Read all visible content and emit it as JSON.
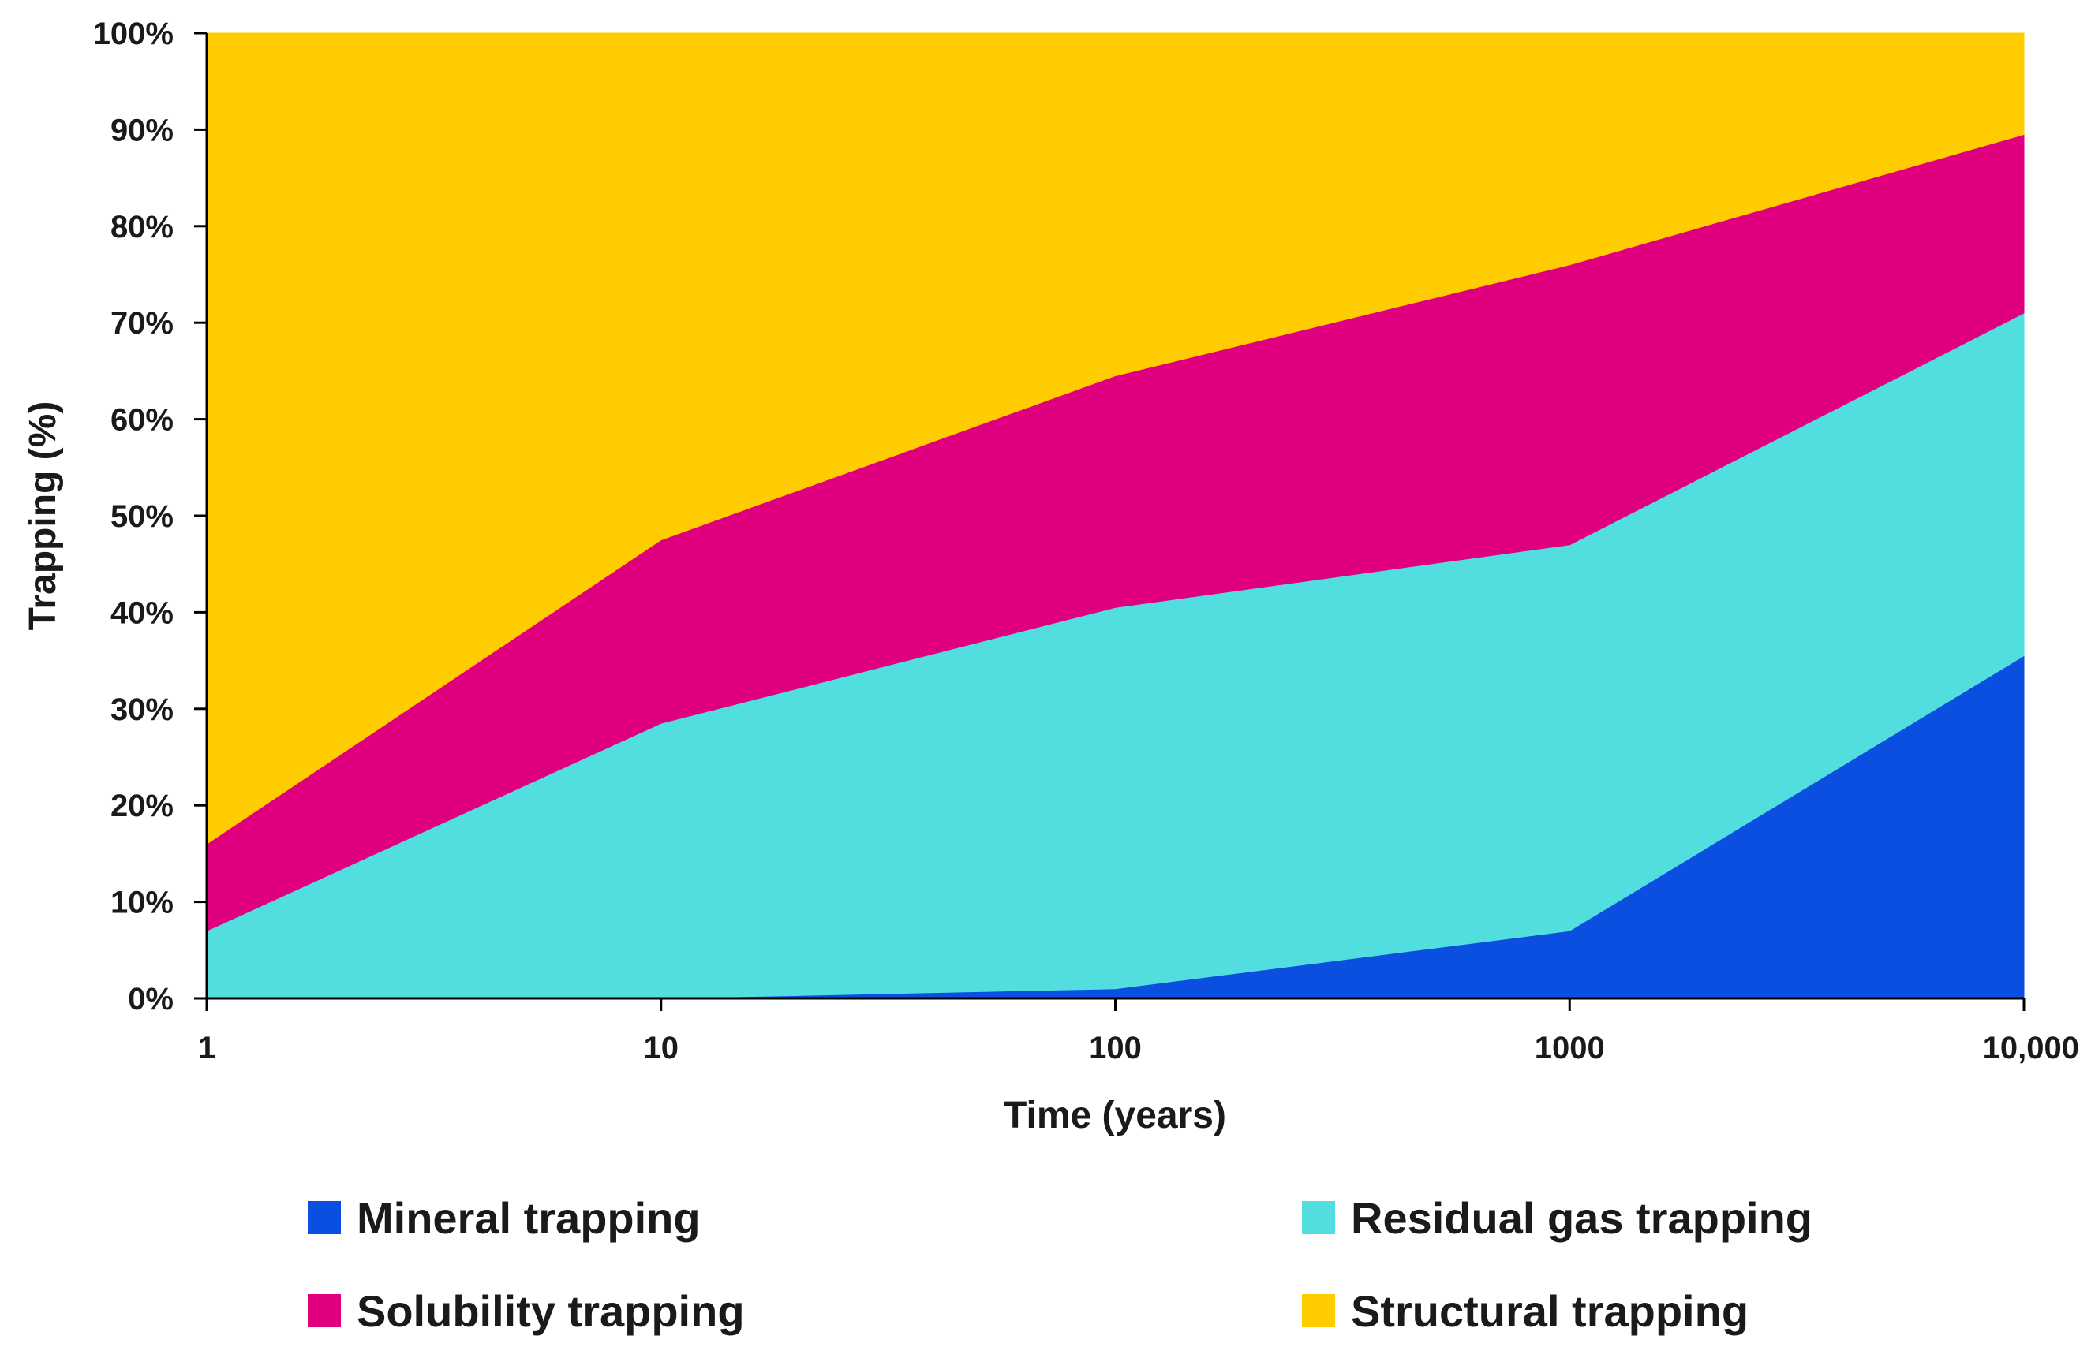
{
  "chart_data": {
    "type": "area",
    "stacked": true,
    "title": "",
    "xlabel": "Time (years)",
    "ylabel": "Trapping (%)",
    "x_scale": "log",
    "x": [
      1,
      10,
      100,
      1000,
      10000
    ],
    "x_tick_labels": [
      "1",
      "10",
      "100",
      "1000",
      "10,000"
    ],
    "y_tick_labels": [
      "0%",
      "10%",
      "20%",
      "30%",
      "40%",
      "50%",
      "60%",
      "70%",
      "80%",
      "90%",
      "100%"
    ],
    "ylim": [
      0,
      100
    ],
    "grid": false,
    "legend_position": "bottom",
    "series": [
      {
        "name": "Mineral trapping",
        "color": "#0a4fe0",
        "values": [
          0,
          0,
          1,
          7,
          35.5
        ]
      },
      {
        "name": "Residual gas trapping",
        "color": "#52dede",
        "values": [
          7,
          28.5,
          39.5,
          40,
          35.5
        ]
      },
      {
        "name": "Solubility trapping",
        "color": "#e0007f",
        "values": [
          9,
          19,
          24,
          29,
          18.5
        ]
      },
      {
        "name": "Structural trapping",
        "color": "#ffcc00",
        "values": [
          84,
          52.5,
          35.5,
          24,
          10.5
        ]
      }
    ]
  }
}
